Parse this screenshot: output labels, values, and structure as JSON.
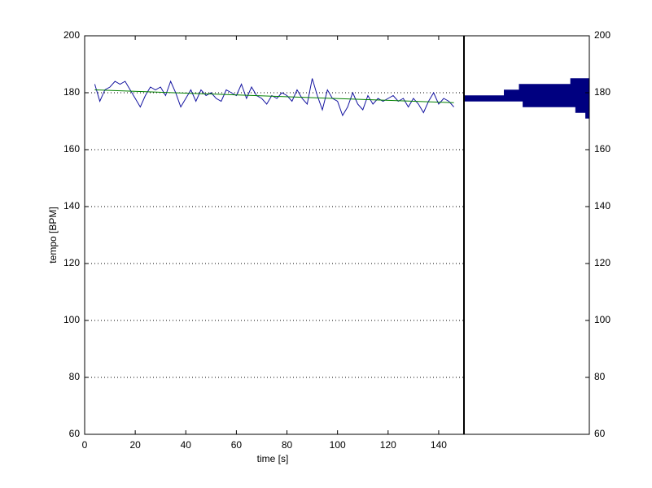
{
  "chart_data": [
    {
      "type": "line",
      "xlabel": "time [s]",
      "ylabel": "tempo [BPM]",
      "xlim": [
        0,
        150
      ],
      "xticks": [
        0,
        20,
        40,
        60,
        80,
        100,
        120,
        140
      ],
      "ylim": [
        60,
        200
      ],
      "yticks": [
        60,
        80,
        100,
        120,
        140,
        160,
        180,
        200
      ],
      "grid": true,
      "series": [
        {
          "color": "#1414a0",
          "x": [
            4,
            6,
            8,
            10,
            12,
            14,
            16,
            18,
            20,
            22,
            24,
            26,
            28,
            30,
            32,
            34,
            36,
            38,
            40,
            42,
            44,
            46,
            48,
            50,
            52,
            54,
            56,
            58,
            60,
            62,
            64,
            66,
            68,
            70,
            72,
            74,
            76,
            78,
            80,
            82,
            84,
            86,
            88,
            90,
            92,
            94,
            96,
            98,
            100,
            102,
            104,
            106,
            108,
            110,
            112,
            114,
            116,
            118,
            120,
            122,
            124,
            126,
            128,
            130,
            132,
            134,
            136,
            138,
            140,
            142,
            144,
            146
          ],
          "values": [
            183,
            177,
            181,
            182,
            184,
            183,
            184,
            181,
            178,
            175,
            179,
            182,
            181,
            182,
            179,
            184,
            180,
            175,
            178,
            181,
            177,
            181,
            179,
            180,
            178,
            177,
            181,
            180,
            179,
            183,
            178,
            182,
            179,
            178,
            176,
            179,
            178,
            180,
            179,
            177,
            181,
            178,
            176,
            185,
            179,
            174,
            181,
            178,
            177,
            172,
            175,
            180,
            176,
            174,
            179,
            176,
            178,
            177,
            178,
            179,
            177,
            178,
            175,
            178,
            176,
            173,
            177,
            180,
            176,
            178,
            177,
            175
          ]
        },
        {
          "color": "#008000",
          "x": [
            4,
            146
          ],
          "values": [
            181,
            176.5
          ]
        }
      ]
    },
    {
      "type": "histogram",
      "orientation": "horizontal",
      "x_reversed": true,
      "color": "#000080",
      "bins": [
        171,
        173,
        175,
        177,
        179,
        181,
        183,
        185
      ],
      "values": [
        3,
        11,
        53,
        100,
        68,
        56,
        15
      ],
      "xlim": [
        0,
        100
      ],
      "ylim": [
        60,
        200
      ],
      "yticks": [
        60,
        80,
        100,
        120,
        140,
        160,
        180,
        200
      ]
    }
  ]
}
